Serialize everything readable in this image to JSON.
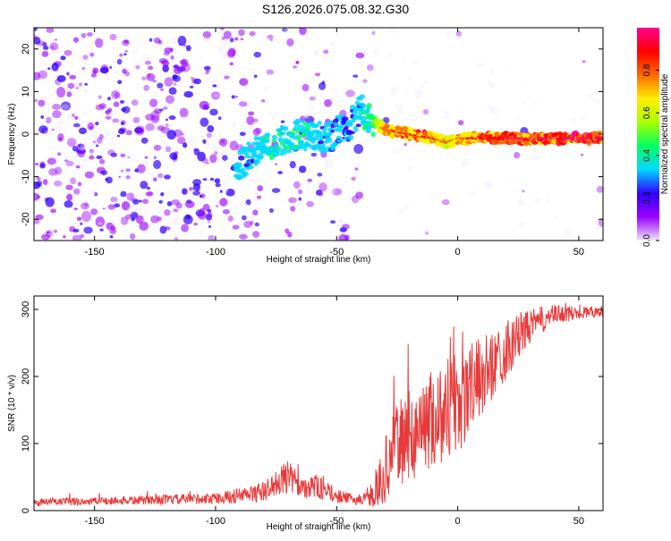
{
  "title": "S126.2026.075.08.32.G30",
  "colors": {
    "snr_line": "#e83a3a",
    "frame": "#000000"
  },
  "chart_data": [
    {
      "type": "heatmap",
      "name": "spectrogram",
      "xlabel": "Height of straight line (km)",
      "ylabel": "Frequency (Hz)",
      "xlim": [
        -175,
        60
      ],
      "ylim": [
        -25,
        25
      ],
      "x_ticks": [
        -150,
        -100,
        -50,
        0,
        50
      ],
      "y_ticks": [
        20,
        10,
        0,
        -10,
        -20
      ],
      "colorbar": {
        "label": "Normalized spectral amplitude",
        "range": [
          0,
          1
        ],
        "ticks": [
          "0.0",
          "0.2",
          "0.4",
          "0.6",
          "0.8"
        ],
        "tick_values": [
          0,
          0.2,
          0.4,
          0.6,
          0.8
        ],
        "colormap": [
          "#f0e6ff",
          "#9a00ff",
          "#3000ff",
          "#00d8ff",
          "#00ff60",
          "#a8ff00",
          "#ffee00",
          "#ff6a00",
          "#ff0000",
          "#ff0090"
        ]
      },
      "ridge": {
        "description_points_x": [
          -92,
          -85,
          -75,
          -65,
          -55,
          -45,
          -40,
          -35,
          -30,
          -20,
          -10,
          -5,
          0,
          5,
          10,
          20,
          30,
          40,
          50,
          60
        ],
        "frequency_hz": [
          -9,
          -5,
          -2,
          0,
          -1,
          2,
          6,
          3,
          1,
          0,
          -1,
          -2,
          -1,
          -1,
          -1,
          -1,
          -1,
          -1,
          -1,
          -1
        ],
        "amplitude": [
          0.35,
          0.35,
          0.4,
          0.4,
          0.35,
          0.3,
          0.35,
          0.5,
          0.75,
          0.85,
          0.8,
          0.7,
          0.75,
          0.8,
          0.85,
          0.9,
          0.9,
          0.9,
          0.95,
          0.95
        ]
      }
    },
    {
      "type": "line",
      "name": "snr",
      "xlabel": "Height of straight line (km)",
      "ylabel": "SNR (10 * v/v)",
      "xlim": [
        -175,
        60
      ],
      "ylim": [
        0,
        320
      ],
      "x_ticks": [
        -150,
        -100,
        -50,
        0,
        50
      ],
      "y_ticks": [
        0,
        100,
        200,
        300
      ],
      "envelope": {
        "x": [
          -175,
          -150,
          -100,
          -90,
          -80,
          -75,
          -70,
          -65,
          -60,
          -55,
          -50,
          -45,
          -40,
          -35,
          -30,
          -25,
          -20,
          -15,
          -10,
          -5,
          0,
          5,
          10,
          15,
          20,
          25,
          30,
          35,
          40,
          50,
          60
        ],
        "mean": [
          12,
          14,
          18,
          22,
          28,
          40,
          50,
          35,
          38,
          30,
          22,
          18,
          15,
          20,
          60,
          100,
          110,
          125,
          140,
          150,
          165,
          180,
          200,
          220,
          240,
          260,
          275,
          285,
          292,
          295,
          298
        ],
        "spread": [
          6,
          6,
          8,
          12,
          15,
          20,
          25,
          18,
          20,
          15,
          10,
          8,
          8,
          15,
          50,
          60,
          70,
          70,
          75,
          80,
          90,
          70,
          60,
          50,
          45,
          35,
          25,
          20,
          15,
          10,
          8
        ]
      }
    }
  ]
}
